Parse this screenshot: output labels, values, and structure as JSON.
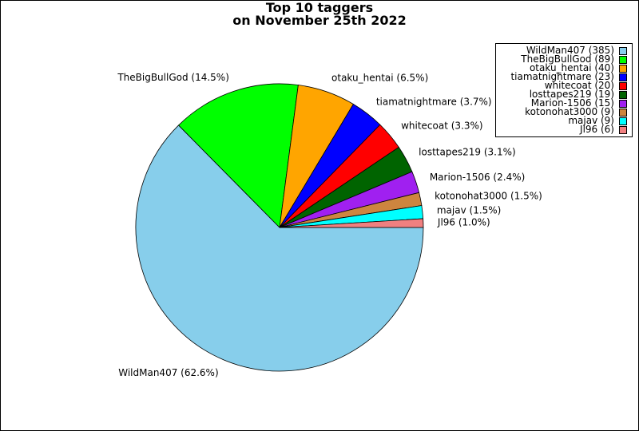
{
  "chart_data": {
    "type": "pie",
    "title_lines": [
      "Top 10 taggers",
      "on November 25th 2022"
    ],
    "slices": [
      {
        "name": "WildMan407",
        "value": 385,
        "label": "WildMan407 (62.6%)",
        "legend": "WildMan407 (385)",
        "color": "#87ceeb"
      },
      {
        "name": "TheBigBullGod",
        "value": 89,
        "label": "TheBigBullGod (14.5%)",
        "legend": "TheBigBullGod (89)",
        "color": "#00ff00"
      },
      {
        "name": "otaku_hentai",
        "value": 40,
        "label": "otaku_hentai (6.5%)",
        "legend": "otaku_hentai (40)",
        "color": "#ffa500"
      },
      {
        "name": "tiamatnightmare",
        "value": 23,
        "label": "tiamatnightmare (3.7%)",
        "legend": "tiamatnightmare (23)",
        "color": "#0000ff"
      },
      {
        "name": "whitecoat",
        "value": 20,
        "label": "whitecoat (3.3%)",
        "legend": "whitecoat (20)",
        "color": "#ff0000"
      },
      {
        "name": "losttapes219",
        "value": 19,
        "label": "losttapes219 (3.1%)",
        "legend": "losttapes219 (19)",
        "color": "#006400"
      },
      {
        "name": "Marion-1506",
        "value": 15,
        "label": "Marion-1506 (2.4%)",
        "legend": "Marion-1506 (15)",
        "color": "#a020f0"
      },
      {
        "name": "kotonohat3000",
        "value": 9,
        "label": "kotonohat3000 (1.5%)",
        "legend": "kotonohat3000 (9)",
        "color": "#cd853f"
      },
      {
        "name": "majav",
        "value": 9,
        "label": "majav (1.5%)",
        "legend": "majav (9)",
        "color": "#00ffff"
      },
      {
        "name": "Jl96",
        "value": 6,
        "label": "Jl96 (1.0%)",
        "legend": "Jl96 (6)",
        "color": "#f08080"
      }
    ],
    "legend_position": "top-right",
    "start_angle": "3 o'clock",
    "direction": "clockwise"
  }
}
